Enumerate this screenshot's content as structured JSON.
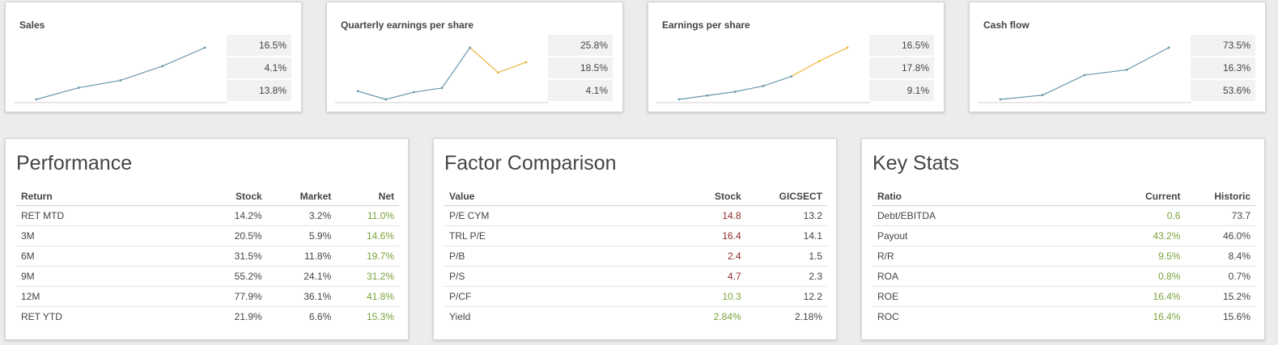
{
  "mini_cards": [
    {
      "title": "Sales",
      "values": [
        "16.5%",
        "4.1%",
        "13.8%"
      ],
      "series": [
        [
          0,
          13.2
        ],
        [
          1,
          14.9
        ],
        [
          2,
          16.0
        ],
        [
          3,
          18.1
        ],
        [
          4,
          20.8
        ]
      ],
      "orange_from": null
    },
    {
      "title": "Quarterly earnings per share",
      "values": [
        "25.8%",
        "18.5%",
        "4.1%"
      ],
      "series": [
        [
          0,
          1.6
        ],
        [
          1,
          0.8
        ],
        [
          2,
          1.5
        ],
        [
          3,
          1.9
        ],
        [
          4,
          5.8
        ],
        [
          5,
          3.4
        ],
        [
          6,
          4.4
        ]
      ],
      "orange_from": 4
    },
    {
      "title": "Earnings per share",
      "values": [
        "16.5%",
        "17.8%",
        "9.1%"
      ],
      "series": [
        [
          0,
          1.0
        ],
        [
          1,
          1.4
        ],
        [
          2,
          1.8
        ],
        [
          3,
          2.4
        ],
        [
          4,
          3.4
        ],
        [
          5,
          5.0
        ],
        [
          6,
          6.4
        ]
      ],
      "orange_from": 4
    },
    {
      "title": "Cash flow",
      "values": [
        "73.5%",
        "16.3%",
        "53.6%"
      ],
      "series": [
        [
          0,
          0.4
        ],
        [
          1,
          1.2
        ],
        [
          2,
          5.0
        ],
        [
          3,
          6.0
        ],
        [
          4,
          10.2
        ]
      ],
      "orange_from": null
    }
  ],
  "colors": {
    "line_blue": "#6a97ad",
    "line_orange": "#f0b43c",
    "positive": "#7aa23a",
    "negative": "#8b2c2c"
  },
  "performance": {
    "heading": "Performance",
    "columns": [
      "Return",
      "Stock",
      "Market",
      "Net"
    ],
    "rows": [
      [
        "RET MTD",
        "14.2%",
        "3.2%",
        "11.0%"
      ],
      [
        "3M",
        "20.5%",
        "5.9%",
        "14.6%"
      ],
      [
        "6M",
        "31.5%",
        "11.8%",
        "19.7%"
      ],
      [
        "9M",
        "55.2%",
        "24.1%",
        "31.2%"
      ],
      [
        "12M",
        "77.9%",
        "36.1%",
        "41.8%"
      ],
      [
        "RET YTD",
        "21.9%",
        "6.6%",
        "15.3%"
      ]
    ]
  },
  "factor": {
    "heading": "Factor Comparison",
    "columns": [
      "Value",
      "Stock",
      "GICSECT"
    ],
    "rows": [
      [
        "P/E CYM",
        "14.8",
        "13.2"
      ],
      [
        "TRL P/E",
        "16.4",
        "14.1"
      ],
      [
        "P/B",
        "2.4",
        "1.5"
      ],
      [
        "P/S",
        "4.7",
        "2.3"
      ],
      [
        "P/CF",
        "10.3",
        "12.2"
      ],
      [
        "Yield",
        "2.84%",
        "2.18%"
      ]
    ],
    "stock_status": [
      "negative",
      "negative",
      "negative",
      "negative",
      "positive",
      "positive"
    ]
  },
  "keystats": {
    "heading": "Key Stats",
    "columns": [
      "Ratio",
      "Current",
      "Historic"
    ],
    "rows": [
      [
        "Debt/EBITDA",
        "0.6",
        "73.7"
      ],
      [
        "Payout",
        "43.2%",
        "46.0%"
      ],
      [
        "R/R",
        "9.5%",
        "8.4%"
      ],
      [
        "ROA",
        "0.8%",
        "0.7%"
      ],
      [
        "ROE",
        "16.4%",
        "15.2%"
      ],
      [
        "ROC",
        "16.4%",
        "15.6%"
      ]
    ]
  }
}
